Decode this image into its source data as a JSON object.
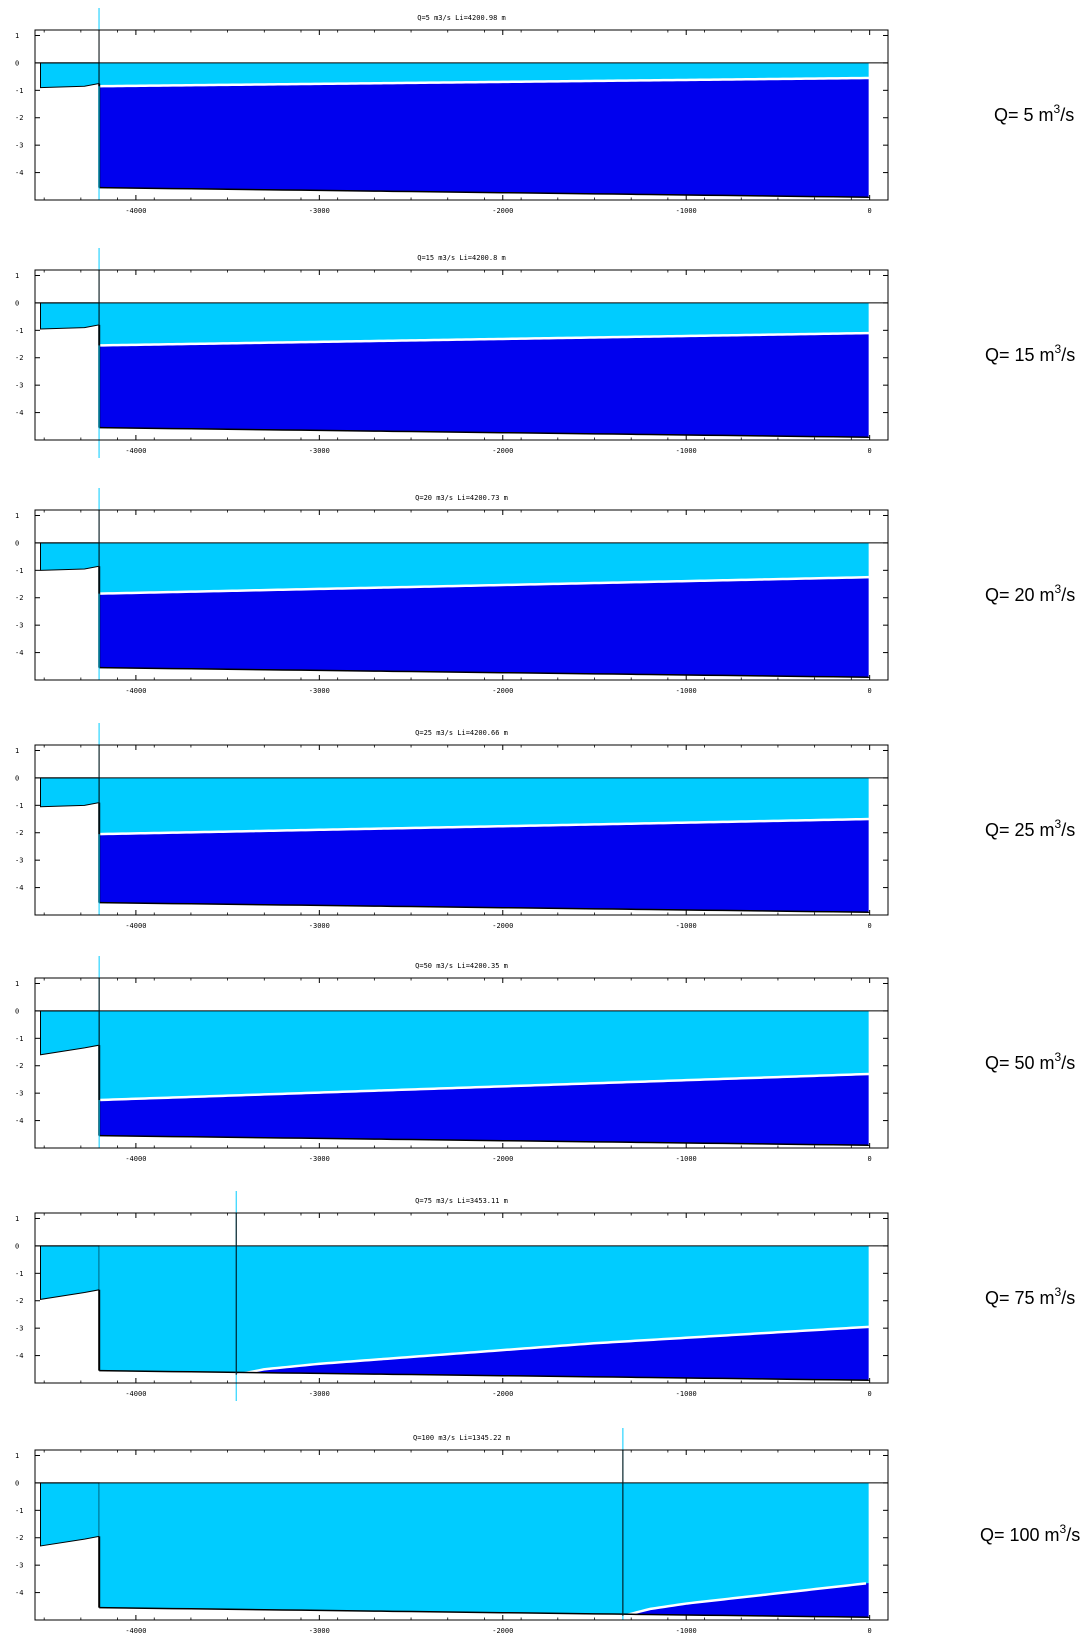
{
  "colors": {
    "water": "#00ccff",
    "salt_wedge": "#0000ee",
    "interface": "#ffffff",
    "outline": "#000000"
  },
  "chart_data": [
    {
      "type": "area",
      "title": "Q=5 m3/s    Li=4200.98  m",
      "side_label": {
        "prefix": "Q= 5 m",
        "sup": "3",
        "suffix": "/s"
      },
      "xlim": [
        -4550,
        100
      ],
      "ylim": [
        -5,
        1.2
      ],
      "xticks": [
        -4000,
        -3000,
        -2000,
        -1000,
        0
      ],
      "yticks": [
        1,
        0,
        -1,
        -2,
        -3,
        -4
      ],
      "toe_x": -4200.98,
      "interface": [
        [
          -4200,
          -0.85
        ],
        [
          0,
          -0.55
        ]
      ],
      "mouth_depth": -0.5
    },
    {
      "type": "area",
      "title": "Q=15 m3/s    Li=4200.8  m",
      "side_label": {
        "prefix": "Q= 15 m",
        "sup": "3",
        "suffix": "/s"
      },
      "xlim": [
        -4550,
        100
      ],
      "ylim": [
        -5,
        1.2
      ],
      "xticks": [
        -4000,
        -3000,
        -2000,
        -1000,
        0
      ],
      "yticks": [
        1,
        0,
        -1,
        -2,
        -3,
        -4
      ],
      "toe_x": -4200.8,
      "interface": [
        [
          -4200,
          -1.55
        ],
        [
          0,
          -1.1
        ]
      ],
      "mouth_depth": -1.1
    },
    {
      "type": "area",
      "title": "Q=20 m3/s    Li=4200.73  m",
      "side_label": {
        "prefix": "Q= 20 m",
        "sup": "3",
        "suffix": "/s"
      },
      "xlim": [
        -4550,
        100
      ],
      "ylim": [
        -5,
        1.2
      ],
      "xticks": [
        -4000,
        -3000,
        -2000,
        -1000,
        0
      ],
      "yticks": [
        1,
        0,
        -1,
        -2,
        -3,
        -4
      ],
      "toe_x": -4200.73,
      "interface": [
        [
          -4200,
          -1.85
        ],
        [
          0,
          -1.25
        ]
      ],
      "mouth_depth": -1.2
    },
    {
      "type": "area",
      "title": "Q=25 m3/s    Li=4200.66  m",
      "side_label": {
        "prefix": "Q= 25 m",
        "sup": "3",
        "suffix": "/s"
      },
      "xlim": [
        -4550,
        100
      ],
      "ylim": [
        -5,
        1.2
      ],
      "xticks": [
        -4000,
        -3000,
        -2000,
        -1000,
        0
      ],
      "yticks": [
        1,
        0,
        -1,
        -2,
        -3,
        -4
      ],
      "toe_x": -4200.66,
      "interface": [
        [
          -4200,
          -2.05
        ],
        [
          0,
          -1.5
        ]
      ],
      "mouth_depth": -1.5
    },
    {
      "type": "area",
      "title": "Q=50 m3/s    Li=4200.35  m",
      "side_label": {
        "prefix": "Q= 50 m",
        "sup": "3",
        "suffix": "/s"
      },
      "xlim": [
        -4550,
        100
      ],
      "ylim": [
        -5,
        1.2
      ],
      "xticks": [
        -4000,
        -3000,
        -2000,
        -1000,
        0
      ],
      "yticks": [
        1,
        0,
        -1,
        -2,
        -3,
        -4
      ],
      "toe_x": -4200.35,
      "interface": [
        [
          -4200,
          -3.25
        ],
        [
          0,
          -2.3
        ]
      ],
      "mouth_depth": -2.3
    },
    {
      "type": "area",
      "title": "Q=75 m3/s    Li=3453.11  m",
      "side_label": {
        "prefix": "Q= 75 m",
        "sup": "3",
        "suffix": "/s"
      },
      "xlim": [
        -4550,
        100
      ],
      "ylim": [
        -5,
        1.2
      ],
      "xticks": [
        -4000,
        -3000,
        -2000,
        -1000,
        0
      ],
      "yticks": [
        1,
        0,
        -1,
        -2,
        -3,
        -4
      ],
      "toe_x": -3453.11,
      "interface": [
        [
          -3453,
          -4.7
        ],
        [
          -3300,
          -4.5
        ],
        [
          -3000,
          -4.3
        ],
        [
          -2500,
          -4.05
        ],
        [
          -2000,
          -3.8
        ],
        [
          -1500,
          -3.55
        ],
        [
          -1000,
          -3.35
        ],
        [
          -500,
          -3.15
        ],
        [
          0,
          -2.95
        ]
      ],
      "mouth_depth": -2.95
    },
    {
      "type": "area",
      "title": "Q=100 m3/s    Li=1345.22  m",
      "side_label": {
        "prefix": "Q= 100 m",
        "sup": "3",
        "suffix": "/s"
      },
      "xlim": [
        -4550,
        100
      ],
      "ylim": [
        -5,
        1.2
      ],
      "xticks": [
        -4000,
        -3000,
        -2000,
        -1000,
        0
      ],
      "yticks": [
        1,
        0,
        -1,
        -2,
        -3,
        -4
      ],
      "toe_x": -1345.22,
      "interface": [
        [
          -1345,
          -4.85
        ],
        [
          -1200,
          -4.6
        ],
        [
          -1000,
          -4.4
        ],
        [
          -800,
          -4.25
        ],
        [
          -600,
          -4.1
        ],
        [
          -400,
          -3.95
        ],
        [
          -200,
          -3.8
        ],
        [
          0,
          -3.65
        ]
      ],
      "mouth_depth": -3.6
    }
  ]
}
